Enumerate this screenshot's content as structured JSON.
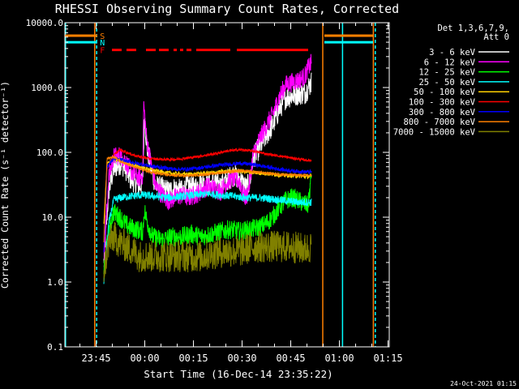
{
  "chart_data": {
    "type": "line",
    "title": "RHESSI Observing Summary Count Rates, Corrected",
    "xlabel": "Start Time (16-Dec-14 23:35:22)",
    "ylabel": "Corrected Count Rate (s⁻¹ detector⁻¹)",
    "yscale": "log",
    "ylim": [
      0.1,
      10000
    ],
    "x_unit": "minutes after 23:35:22",
    "xlim": [
      0,
      100
    ],
    "x_ticks": [
      {
        "t": 9.63,
        "label": "23:45"
      },
      {
        "t": 24.63,
        "label": "00:00"
      },
      {
        "t": 39.63,
        "label": "00:15"
      },
      {
        "t": 54.63,
        "label": "00:30"
      },
      {
        "t": 69.63,
        "label": "00:45"
      },
      {
        "t": 84.63,
        "label": "01:00"
      },
      {
        "t": 99.63,
        "label": "01:15"
      }
    ],
    "y_ticks": [
      {
        "v": 10000,
        "label": "10000.0"
      },
      {
        "v": 1000,
        "label": "1000.0"
      },
      {
        "v": 100,
        "label": "100.0"
      },
      {
        "v": 10,
        "label": "10.0"
      },
      {
        "v": 1,
        "label": "1.0"
      },
      {
        "v": 0.1,
        "label": "0.1"
      }
    ],
    "legend_header": [
      "Det 1,3,6,7,9,",
      "Att 0"
    ],
    "legend_placement": "right",
    "series": [
      {
        "name": "3 - 6 keV",
        "color": "#ffffff",
        "noise": 0.18,
        "points": [
          [
            12,
            2
          ],
          [
            13.5,
            25
          ],
          [
            15,
            55
          ],
          [
            17,
            68
          ],
          [
            18.5,
            60
          ],
          [
            20,
            40
          ],
          [
            21.5,
            35
          ],
          [
            23,
            30
          ],
          [
            24,
            34
          ],
          [
            24.5,
            380
          ],
          [
            25.3,
            120
          ],
          [
            26.5,
            60
          ],
          [
            28,
            30
          ],
          [
            30,
            28
          ],
          [
            32,
            25
          ],
          [
            34,
            28
          ],
          [
            36,
            25
          ],
          [
            38,
            30
          ],
          [
            40,
            28
          ],
          [
            42,
            35
          ],
          [
            44,
            30
          ],
          [
            46,
            35
          ],
          [
            48,
            30
          ],
          [
            50,
            38
          ],
          [
            52,
            45
          ],
          [
            54,
            38
          ],
          [
            56,
            28
          ],
          [
            57,
            35
          ],
          [
            58,
            80
          ],
          [
            60,
            120
          ],
          [
            62,
            180
          ],
          [
            64,
            260
          ],
          [
            66,
            450
          ],
          [
            68,
            700
          ],
          [
            70,
            750
          ],
          [
            72,
            800
          ],
          [
            74,
            820
          ],
          [
            75,
            1000
          ],
          [
            76,
            1200
          ]
        ]
      },
      {
        "name": "6 - 12 keV",
        "color": "#ff00ff",
        "noise": 0.15,
        "points": [
          [
            12,
            2
          ],
          [
            13.5,
            40
          ],
          [
            15,
            85
          ],
          [
            17,
            90
          ],
          [
            18.5,
            75
          ],
          [
            20,
            55
          ],
          [
            21.5,
            45
          ],
          [
            23,
            40
          ],
          [
            24,
            45
          ],
          [
            24.3,
            560
          ],
          [
            25.2,
            160
          ],
          [
            26.5,
            70
          ],
          [
            28,
            30
          ],
          [
            30,
            22
          ],
          [
            32,
            18
          ],
          [
            34,
            20
          ],
          [
            36,
            22
          ],
          [
            38,
            20
          ],
          [
            40,
            22
          ],
          [
            42,
            25
          ],
          [
            44,
            30
          ],
          [
            46,
            28
          ],
          [
            48,
            25
          ],
          [
            50,
            35
          ],
          [
            52,
            40
          ],
          [
            54,
            35
          ],
          [
            55,
            22
          ],
          [
            56,
            20
          ],
          [
            57,
            35
          ],
          [
            58,
            90
          ],
          [
            60,
            160
          ],
          [
            62,
            250
          ],
          [
            64,
            380
          ],
          [
            66,
            700
          ],
          [
            68,
            1100
          ],
          [
            70,
            1200
          ],
          [
            72,
            1300
          ],
          [
            74,
            1500
          ],
          [
            75,
            2000
          ],
          [
            76,
            2400
          ]
        ]
      },
      {
        "name": "12 - 25 keV",
        "color": "#00ff00",
        "noise": 0.15,
        "points": [
          [
            12,
            1.5
          ],
          [
            13.5,
            6
          ],
          [
            15,
            12
          ],
          [
            17,
            10
          ],
          [
            18.5,
            8
          ],
          [
            20,
            7
          ],
          [
            22,
            6.5
          ],
          [
            24,
            6
          ],
          [
            24.5,
            13
          ],
          [
            25.5,
            8
          ],
          [
            27,
            5
          ],
          [
            30,
            4.5
          ],
          [
            33,
            5
          ],
          [
            36,
            5
          ],
          [
            39,
            5.5
          ],
          [
            42,
            5
          ],
          [
            45,
            5.5
          ],
          [
            48,
            6
          ],
          [
            51,
            6.5
          ],
          [
            54,
            6
          ],
          [
            57,
            6.5
          ],
          [
            60,
            7
          ],
          [
            62,
            8
          ],
          [
            64,
            10
          ],
          [
            66,
            14
          ],
          [
            68,
            18
          ],
          [
            70,
            20
          ],
          [
            72,
            18
          ],
          [
            74,
            16
          ],
          [
            75,
            15
          ],
          [
            76,
            45
          ]
        ]
      },
      {
        "name": "25 - 50 keV",
        "color": "#00ffff",
        "noise": 0.06,
        "points": [
          [
            12,
            1
          ],
          [
            13.5,
            8
          ],
          [
            15,
            18
          ],
          [
            17,
            20
          ],
          [
            20,
            21
          ],
          [
            24,
            22
          ],
          [
            28,
            21
          ],
          [
            32,
            20
          ],
          [
            36,
            21
          ],
          [
            40,
            22
          ],
          [
            44,
            23
          ],
          [
            48,
            22
          ],
          [
            52,
            21
          ],
          [
            56,
            20
          ],
          [
            60,
            20
          ],
          [
            64,
            19
          ],
          [
            68,
            18
          ],
          [
            72,
            17
          ],
          [
            76,
            17
          ]
        ]
      },
      {
        "name": "50 - 100 keV",
        "color": "#ffd000",
        "noise": 0.03,
        "points": [
          [
            12,
            8
          ],
          [
            13,
            65
          ],
          [
            14,
            75
          ],
          [
            15,
            80
          ],
          [
            17,
            75
          ],
          [
            20,
            65
          ],
          [
            24,
            58
          ],
          [
            28,
            52
          ],
          [
            32,
            48
          ],
          [
            36,
            46
          ],
          [
            40,
            46
          ],
          [
            44,
            48
          ],
          [
            48,
            50
          ],
          [
            52,
            52
          ],
          [
            56,
            50
          ],
          [
            60,
            48
          ],
          [
            64,
            46
          ],
          [
            68,
            44
          ],
          [
            72,
            43
          ],
          [
            76,
            42
          ]
        ]
      },
      {
        "name": "100 - 300 keV",
        "color": "#ff0000",
        "noise": 0.02,
        "points": [
          [
            12,
            3
          ],
          [
            13,
            55
          ],
          [
            15,
            90
          ],
          [
            17,
            110
          ],
          [
            19,
            100
          ],
          [
            22,
            88
          ],
          [
            26,
            80
          ],
          [
            30,
            78
          ],
          [
            34,
            78
          ],
          [
            38,
            82
          ],
          [
            42,
            88
          ],
          [
            46,
            95
          ],
          [
            50,
            105
          ],
          [
            54,
            110
          ],
          [
            58,
            105
          ],
          [
            62,
            95
          ],
          [
            66,
            88
          ],
          [
            70,
            82
          ],
          [
            74,
            76
          ],
          [
            76,
            75
          ]
        ]
      },
      {
        "name": "300 - 800 keV",
        "color": "#0000ff",
        "noise": 0.03,
        "points": [
          [
            12,
            3
          ],
          [
            13,
            60
          ],
          [
            15,
            80
          ],
          [
            18,
            75
          ],
          [
            22,
            68
          ],
          [
            26,
            62
          ],
          [
            30,
            58
          ],
          [
            34,
            55
          ],
          [
            38,
            55
          ],
          [
            42,
            58
          ],
          [
            46,
            62
          ],
          [
            50,
            65
          ],
          [
            54,
            68
          ],
          [
            58,
            65
          ],
          [
            62,
            60
          ],
          [
            66,
            55
          ],
          [
            70,
            52
          ],
          [
            74,
            50
          ],
          [
            76,
            50
          ]
        ]
      },
      {
        "name": "800 - 7000 keV",
        "color": "#ff8000",
        "noise": 0.02,
        "points": [
          [
            12,
            4
          ],
          [
            13,
            80
          ],
          [
            15,
            85
          ],
          [
            18,
            70
          ],
          [
            22,
            58
          ],
          [
            26,
            50
          ],
          [
            30,
            46
          ],
          [
            34,
            44
          ],
          [
            38,
            44
          ],
          [
            42,
            45
          ],
          [
            46,
            47
          ],
          [
            50,
            50
          ],
          [
            54,
            52
          ],
          [
            58,
            50
          ],
          [
            62,
            48
          ],
          [
            66,
            46
          ],
          [
            70,
            45
          ],
          [
            74,
            44
          ],
          [
            76,
            44
          ]
        ]
      },
      {
        "name": "7000 - 15000 keV",
        "color": "#808000",
        "noise": 0.25,
        "points": [
          [
            12,
            1.5
          ],
          [
            13.5,
            4
          ],
          [
            15,
            5
          ],
          [
            17,
            4
          ],
          [
            19,
            3.5
          ],
          [
            21,
            3
          ],
          [
            23,
            2.5
          ],
          [
            26,
            2.5
          ],
          [
            30,
            2.5
          ],
          [
            34,
            2.5
          ],
          [
            38,
            2.5
          ],
          [
            42,
            2.5
          ],
          [
            46,
            2.8
          ],
          [
            50,
            3
          ],
          [
            54,
            3
          ],
          [
            58,
            3.5
          ],
          [
            62,
            3.5
          ],
          [
            66,
            3.5
          ],
          [
            70,
            3.5
          ],
          [
            74,
            3.2
          ],
          [
            76,
            3.5
          ]
        ]
      }
    ],
    "flag_lines": [
      {
        "label": "S",
        "color": "#ff8000",
        "level": 6300,
        "segments": [
          [
            0,
            10
          ],
          [
            80,
            95
          ]
        ]
      },
      {
        "label": "N",
        "color": "#00ffff",
        "level": 5000,
        "segments": [
          [
            0,
            10
          ],
          [
            80,
            95
          ]
        ]
      },
      {
        "label": "F",
        "color": "#ff0000",
        "level": 3800,
        "segments": [
          [
            14.5,
            17.5
          ],
          [
            19,
            22
          ],
          [
            25,
            28
          ],
          [
            29,
            32
          ],
          [
            33.5,
            34.5
          ],
          [
            35.5,
            36.5
          ],
          [
            37.5,
            39
          ],
          [
            40.5,
            51
          ],
          [
            53,
            75
          ]
        ]
      }
    ],
    "boundaries": [
      {
        "t": 0.2,
        "color": "#00ffff",
        "style": "solid"
      },
      {
        "t": 9.2,
        "color": "#ff8000",
        "style": "solid"
      },
      {
        "t": 9.8,
        "color": "#00ffff",
        "style": "dashed"
      },
      {
        "t": 79.5,
        "color": "#ff8000",
        "style": "solid"
      },
      {
        "t": 85.6,
        "color": "#00ffff",
        "style": "solid"
      },
      {
        "t": 95.1,
        "color": "#ff8000",
        "style": "solid"
      },
      {
        "t": 95.7,
        "color": "#00ffff",
        "style": "dashed"
      }
    ]
  },
  "footer": {
    "timestamp": "24-Oct-2021 01:15"
  }
}
